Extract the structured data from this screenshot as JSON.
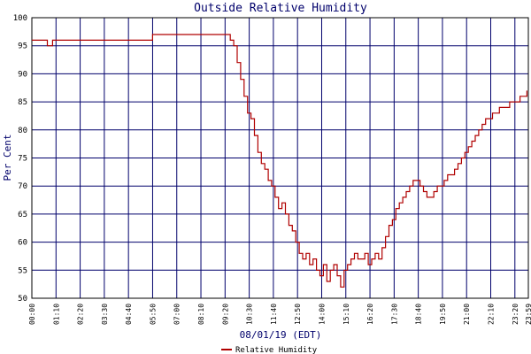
{
  "chart_data": {
    "type": "line",
    "title": "Outside Relative Humidity",
    "xlabel": "08/01/19 (EDT)",
    "ylabel": "Per Cent",
    "ylim": [
      50,
      100
    ],
    "yticks": [
      "50",
      "55",
      "60",
      "65",
      "70",
      "75",
      "80",
      "85",
      "90",
      "95",
      "100"
    ],
    "xticks": [
      "00:00",
      "01:10",
      "02:20",
      "03:30",
      "04:40",
      "05:50",
      "07:00",
      "08:10",
      "09:20",
      "10:30",
      "11:40",
      "12:50",
      "14:00",
      "15:10",
      "16:20",
      "17:30",
      "18:40",
      "19:50",
      "21:00",
      "22:10",
      "23:20",
      "23:59"
    ],
    "grid": true,
    "legend_position": "bottom-center",
    "colors": {
      "series": "#b00000",
      "grid": "#00006b",
      "frame": "#000000"
    },
    "series": [
      {
        "name": "Relative Humidity",
        "x": [
          "00:00",
          "00:40",
          "00:45",
          "00:55",
          "01:00",
          "05:45",
          "05:50",
          "09:25",
          "09:35",
          "09:45",
          "09:55",
          "10:05",
          "10:15",
          "10:25",
          "10:35",
          "10:45",
          "10:55",
          "11:05",
          "11:15",
          "11:25",
          "11:35",
          "11:45",
          "11:55",
          "12:05",
          "12:15",
          "12:25",
          "12:35",
          "12:45",
          "12:55",
          "13:05",
          "13:15",
          "13:25",
          "13:35",
          "13:45",
          "13:55",
          "14:05",
          "14:15",
          "14:25",
          "14:35",
          "14:45",
          "14:55",
          "15:05",
          "15:15",
          "15:25",
          "15:35",
          "15:45",
          "15:55",
          "16:05",
          "16:15",
          "16:25",
          "16:35",
          "16:45",
          "16:55",
          "17:05",
          "17:15",
          "17:25",
          "17:35",
          "17:45",
          "17:55",
          "18:05",
          "18:15",
          "18:25",
          "18:35",
          "18:45",
          "18:55",
          "19:05",
          "19:15",
          "19:25",
          "19:35",
          "19:45",
          "19:55",
          "20:05",
          "20:15",
          "20:25",
          "20:35",
          "20:45",
          "20:55",
          "21:05",
          "21:15",
          "21:25",
          "21:35",
          "21:45",
          "21:55",
          "22:05",
          "22:15",
          "22:25",
          "22:35",
          "22:45",
          "22:55",
          "23:05",
          "23:15",
          "23:25",
          "23:35",
          "23:45",
          "23:55"
        ],
        "values": [
          96,
          96,
          95,
          95,
          96,
          96,
          97,
          97,
          96,
          95,
          92,
          89,
          86,
          83,
          82,
          79,
          76,
          74,
          73,
          71,
          70,
          68,
          66,
          67,
          65,
          63,
          62,
          60,
          58,
          57,
          58,
          56,
          57,
          55,
          54,
          56,
          53,
          55,
          56,
          54,
          52,
          55,
          56,
          57,
          58,
          57,
          57,
          58,
          56,
          57,
          58,
          57,
          59,
          61,
          63,
          64,
          66,
          67,
          68,
          69,
          70,
          71,
          71,
          70,
          69,
          68,
          68,
          69,
          70,
          70,
          71,
          72,
          72,
          73,
          74,
          75,
          76,
          77,
          78,
          79,
          80,
          81,
          82,
          82,
          83,
          83,
          84,
          84,
          84,
          85,
          85,
          85,
          86,
          86,
          87
        ]
      }
    ]
  }
}
